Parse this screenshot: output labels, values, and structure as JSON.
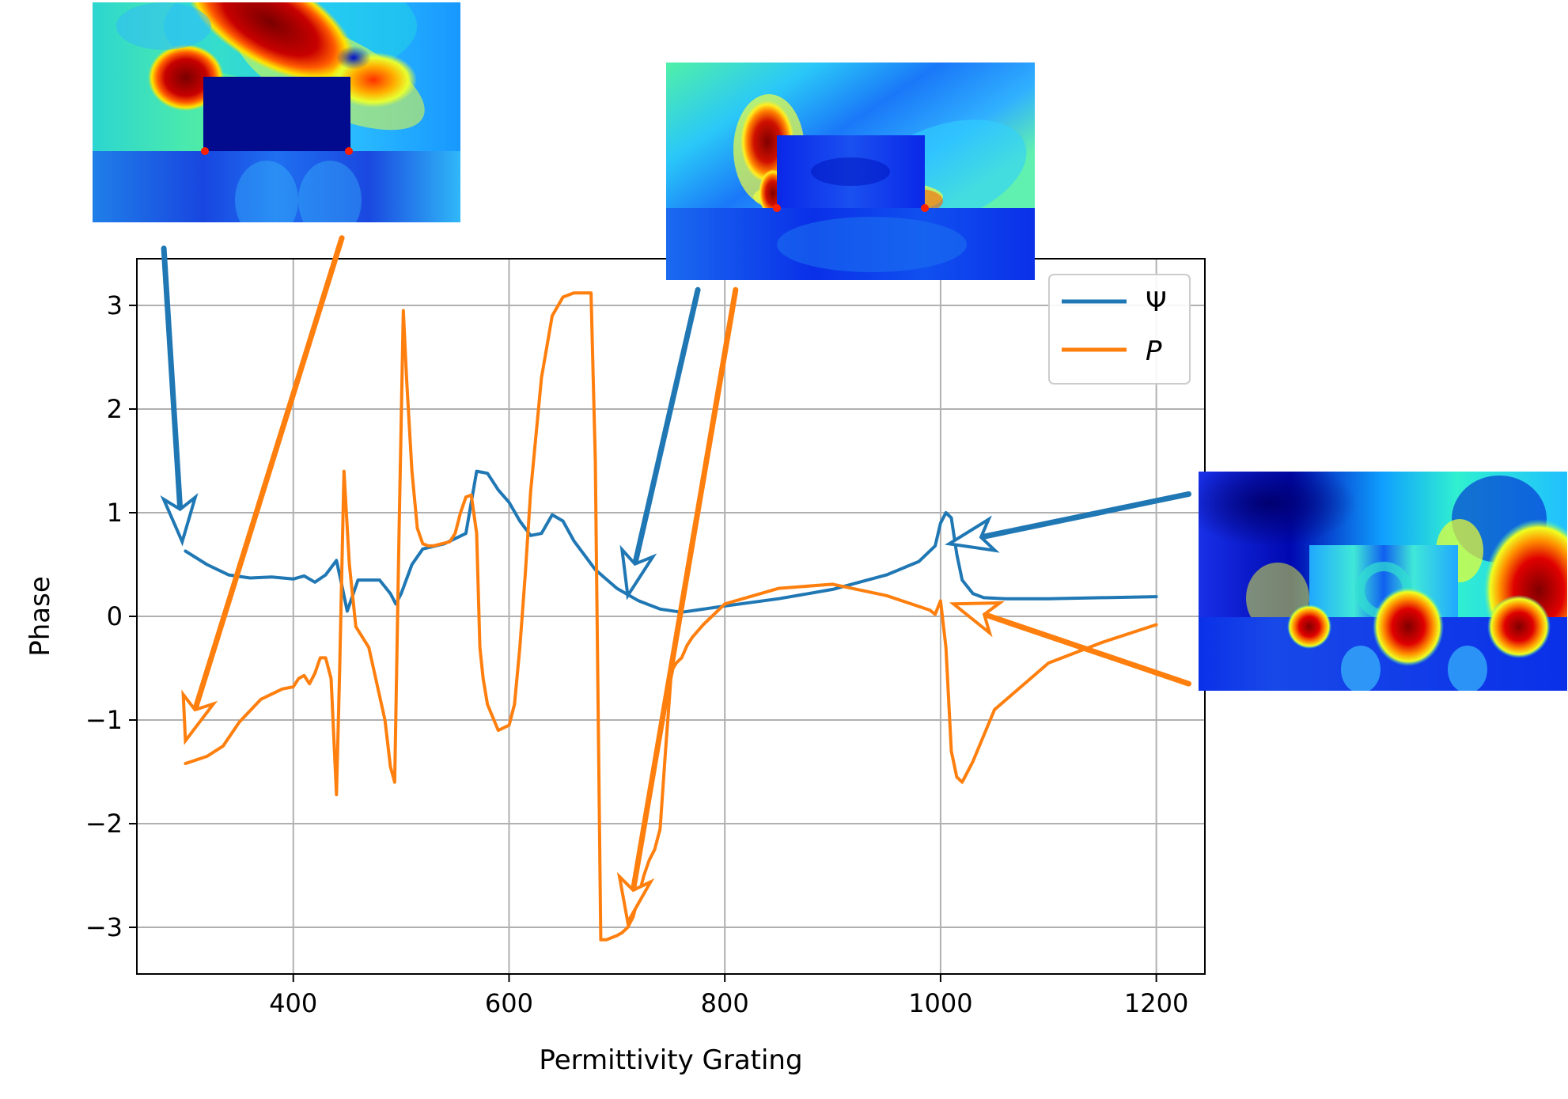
{
  "chart_data": {
    "type": "line",
    "title": "",
    "xlabel": "Permittivity Grating",
    "ylabel": "Phase",
    "xlim": [
      255,
      1245
    ],
    "ylim": [
      -3.45,
      3.45
    ],
    "xticks": [
      400,
      600,
      800,
      1000,
      1200
    ],
    "xtick_labels": [
      "400",
      "600",
      "800",
      "1000",
      "1200"
    ],
    "yticks": [
      -3,
      -2,
      -1,
      0,
      1,
      2,
      3
    ],
    "ytick_labels": [
      "−3",
      "−2",
      "−1",
      "0",
      "1",
      "2",
      "3"
    ],
    "grid": true,
    "legend": "top-right",
    "series": [
      {
        "name": "Ψ",
        "color": "#1f77b4",
        "x": [
          300,
          320,
          340,
          360,
          380,
          400,
          410,
          420,
          430,
          440,
          445,
          450,
          455,
          460,
          480,
          490,
          495,
          500,
          510,
          520,
          540,
          560,
          570,
          580,
          590,
          600,
          610,
          620,
          630,
          640,
          650,
          660,
          680,
          700,
          720,
          740,
          760,
          800,
          850,
          900,
          950,
          980,
          995,
          1000,
          1005,
          1010,
          1015,
          1020,
          1030,
          1040,
          1060,
          1100,
          1150,
          1200
        ],
        "y": [
          0.63,
          0.5,
          0.4,
          0.37,
          0.38,
          0.36,
          0.39,
          0.33,
          0.4,
          0.54,
          0.3,
          0.05,
          0.2,
          0.35,
          0.35,
          0.22,
          0.12,
          0.22,
          0.5,
          0.65,
          0.7,
          0.8,
          1.4,
          1.38,
          1.22,
          1.1,
          0.92,
          0.78,
          0.8,
          0.98,
          0.92,
          0.73,
          0.45,
          0.27,
          0.15,
          0.07,
          0.04,
          0.1,
          0.17,
          0.26,
          0.4,
          0.53,
          0.68,
          0.9,
          1.0,
          0.95,
          0.6,
          0.35,
          0.22,
          0.18,
          0.17,
          0.17,
          0.18,
          0.19
        ]
      },
      {
        "name": "P",
        "color": "#ff7f0e",
        "x": [
          300,
          320,
          335,
          350,
          370,
          390,
          400,
          405,
          410,
          415,
          420,
          425,
          430,
          435,
          440,
          443,
          447,
          452,
          458,
          470,
          485,
          490,
          494,
          498,
          502,
          505,
          510,
          515,
          520,
          525,
          530,
          545,
          550,
          555,
          560,
          565,
          570,
          573,
          576,
          580,
          590,
          600,
          605,
          610,
          615,
          620,
          630,
          640,
          650,
          660,
          670,
          676,
          680,
          685,
          690,
          695,
          700,
          705,
          710,
          715,
          720,
          725,
          730,
          735,
          740,
          745,
          750,
          752,
          755,
          758,
          760,
          765,
          770,
          780,
          800,
          850,
          900,
          950,
          990,
          995,
          1000,
          1005,
          1010,
          1015,
          1020,
          1030,
          1050,
          1100,
          1150,
          1200
        ],
        "y": [
          -1.42,
          -1.35,
          -1.25,
          -1.02,
          -0.8,
          -0.7,
          -0.68,
          -0.6,
          -0.57,
          -0.65,
          -0.55,
          -0.4,
          -0.4,
          -0.6,
          -1.72,
          -0.5,
          1.4,
          0.5,
          -0.1,
          -0.3,
          -1.0,
          -1.45,
          -1.6,
          0.8,
          2.95,
          2.3,
          1.4,
          0.85,
          0.7,
          0.68,
          0.68,
          0.72,
          0.8,
          1.0,
          1.15,
          1.17,
          0.8,
          -0.3,
          -0.6,
          -0.85,
          -1.1,
          -1.05,
          -0.85,
          -0.3,
          0.4,
          1.2,
          2.3,
          2.9,
          3.08,
          3.12,
          3.12,
          3.12,
          1.5,
          -3.12,
          -3.12,
          -3.1,
          -3.08,
          -3.05,
          -3.0,
          -2.9,
          -2.7,
          -2.5,
          -2.35,
          -2.25,
          -2.05,
          -1.3,
          -0.6,
          -0.5,
          -0.45,
          -0.42,
          -0.4,
          -0.28,
          -0.2,
          -0.08,
          0.12,
          0.27,
          0.31,
          0.2,
          0.06,
          0.02,
          0.15,
          -0.3,
          -1.3,
          -1.55,
          -1.6,
          -1.4,
          -0.9,
          -0.45,
          -0.25,
          -0.08
        ]
      }
    ],
    "annotations": [
      {
        "type": "arrow",
        "color": "#1f77b4",
        "from": [
          280,
          3.55
        ],
        "to": [
          297,
          0.72
        ]
      },
      {
        "type": "arrow",
        "color": "#ff7f0e",
        "from": [
          445,
          3.65
        ],
        "to": [
          300,
          -1.2
        ]
      },
      {
        "type": "arrow",
        "color": "#1f77b4",
        "from": [
          775,
          3.15
        ],
        "to": [
          710,
          0.2
        ]
      },
      {
        "type": "arrow",
        "color": "#ff7f0e",
        "from": [
          810,
          3.15
        ],
        "to": [
          710,
          -2.95
        ]
      },
      {
        "type": "arrow",
        "color": "#1f77b4",
        "from": [
          1230,
          1.18
        ],
        "to": [
          1008,
          0.7
        ]
      },
      {
        "type": "arrow",
        "color": "#ff7f0e",
        "from": [
          1230,
          -0.65
        ],
        "to": [
          1012,
          0.12
        ]
      }
    ]
  },
  "insets": [
    {
      "name": "field-map-inset-1",
      "substrate_color": "#1a8cf0"
    },
    {
      "name": "field-map-inset-2",
      "substrate_color": "#0a3cf0"
    },
    {
      "name": "field-map-inset-3",
      "substrate_color": "#0a30e8"
    }
  ]
}
